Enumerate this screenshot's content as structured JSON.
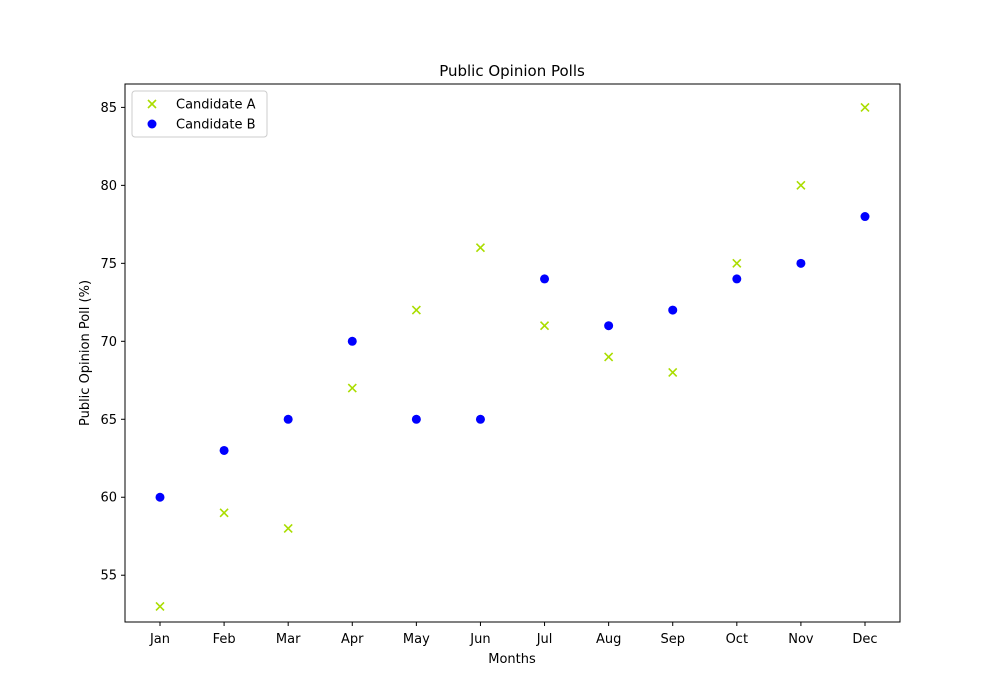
{
  "chart_data": {
    "type": "scatter",
    "title": "Public Opinion Polls",
    "xlabel": "Months",
    "ylabel": "Public Opinion Poll (%)",
    "categories": [
      "Jan",
      "Feb",
      "Mar",
      "Apr",
      "May",
      "Jun",
      "Jul",
      "Aug",
      "Sep",
      "Oct",
      "Nov",
      "Dec"
    ],
    "ylim": [
      52,
      86.5
    ],
    "yticks": [
      55,
      60,
      65,
      70,
      75,
      80,
      85
    ],
    "grid": false,
    "legend_position": "upper-left",
    "series": [
      {
        "name": "Candidate A",
        "marker": "x",
        "color": "#aadd00",
        "values": [
          53,
          59,
          58,
          67,
          72,
          76,
          71,
          69,
          68,
          75,
          80,
          85
        ]
      },
      {
        "name": "Candidate B",
        "marker": "circle",
        "color": "#0000ff",
        "values": [
          60,
          63,
          65,
          70,
          65,
          65,
          74,
          71,
          72,
          74,
          75,
          78
        ]
      }
    ]
  }
}
